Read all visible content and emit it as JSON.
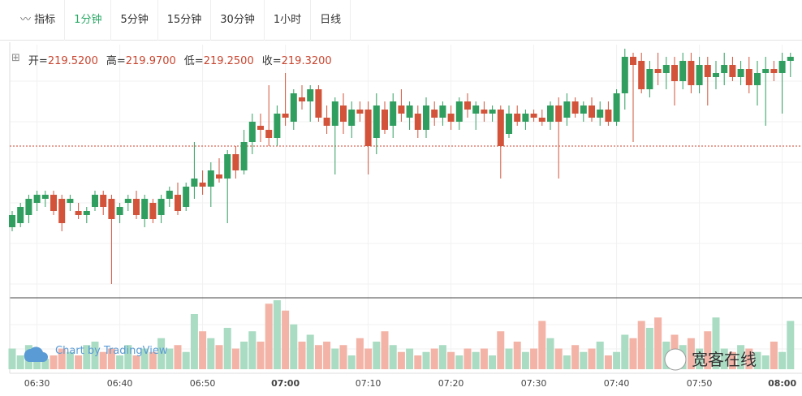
{
  "toolbar": {
    "indicator": "指标",
    "intervals": [
      "1分钟",
      "5分钟",
      "15分钟",
      "30分钟",
      "1小时",
      "日线"
    ],
    "active_interval": 0
  },
  "ohlc_header": [
    {
      "label": "开=",
      "value": "219.5200"
    },
    {
      "label": "高=",
      "value": "219.9700"
    },
    {
      "label": "低=",
      "value": "219.2500"
    },
    {
      "label": "收=",
      "value": "219.3200"
    }
  ],
  "watermarks": {
    "chart_by": "Chart by TradingView",
    "brand": "宽客在线"
  },
  "chart_data": {
    "type": "candlestick",
    "up_color": "#2f9e5f",
    "down_color": "#d2533a",
    "volume_up_color": "#a9dcc2",
    "volume_down_color": "#f3b3a6",
    "ylim": [
      218.7,
      219.94
    ],
    "volume_ylim": [
      0,
      100
    ],
    "price_line": 219.44,
    "categories": [
      null,
      null,
      null,
      "06:30",
      null,
      null,
      null,
      null,
      null,
      null,
      null,
      null,
      null,
      "06:40",
      null,
      null,
      null,
      null,
      null,
      null,
      null,
      null,
      null,
      "06:50",
      null,
      null,
      null,
      null,
      null,
      null,
      null,
      null,
      null,
      "07:00",
      null,
      null,
      null,
      null,
      null,
      null,
      null,
      null,
      null,
      "07:10",
      null,
      null,
      null,
      null,
      null,
      null,
      null,
      null,
      null,
      "07:20",
      null,
      null,
      null,
      null,
      null,
      null,
      null,
      null,
      null,
      "07:30",
      null,
      null,
      null,
      null,
      null,
      null,
      null,
      null,
      null,
      "07:40",
      null,
      null,
      null,
      null,
      null,
      null,
      null,
      null,
      null,
      "07:50",
      null,
      null,
      null,
      null,
      null,
      null,
      null,
      null,
      null,
      "08:00",
      null
    ],
    "ohlc": [
      [
        219.04,
        219.12,
        219.02,
        219.1
      ],
      [
        219.06,
        219.16,
        219.04,
        219.14
      ],
      [
        219.1,
        219.2,
        219.06,
        219.18
      ],
      [
        219.16,
        219.22,
        219.12,
        219.2
      ],
      [
        219.18,
        219.22,
        219.14,
        219.2
      ],
      [
        219.2,
        219.22,
        219.1,
        219.12
      ],
      [
        219.18,
        219.2,
        219.02,
        219.06
      ],
      [
        219.16,
        219.2,
        219.12,
        219.18
      ],
      [
        219.12,
        219.16,
        219.08,
        219.1
      ],
      [
        219.1,
        219.14,
        219.06,
        219.12
      ],
      [
        219.14,
        219.22,
        219.12,
        219.2
      ],
      [
        219.2,
        219.22,
        219.1,
        219.14
      ],
      [
        219.18,
        219.2,
        218.76,
        219.08
      ],
      [
        219.1,
        219.16,
        219.06,
        219.14
      ],
      [
        219.16,
        219.2,
        219.12,
        219.18
      ],
      [
        219.18,
        219.22,
        219.08,
        219.1
      ],
      [
        219.08,
        219.2,
        219.04,
        219.18
      ],
      [
        219.16,
        219.18,
        219.06,
        219.08
      ],
      [
        219.1,
        219.2,
        219.06,
        219.18
      ],
      [
        219.18,
        219.24,
        219.14,
        219.22
      ],
      [
        219.2,
        219.26,
        219.1,
        219.12
      ],
      [
        219.14,
        219.26,
        219.12,
        219.24
      ],
      [
        219.24,
        219.46,
        219.18,
        219.28
      ],
      [
        219.26,
        219.32,
        219.2,
        219.24
      ],
      [
        219.24,
        219.36,
        219.14,
        219.32
      ],
      [
        219.3,
        219.38,
        219.26,
        219.28
      ],
      [
        219.28,
        219.42,
        219.06,
        219.4
      ],
      [
        219.4,
        219.44,
        219.28,
        219.32
      ],
      [
        219.32,
        219.52,
        219.3,
        219.46
      ],
      [
        219.46,
        219.6,
        219.4,
        219.56
      ],
      [
        219.54,
        219.6,
        219.46,
        219.52
      ],
      [
        219.52,
        219.74,
        219.44,
        219.48
      ],
      [
        219.48,
        219.64,
        219.44,
        219.6
      ],
      [
        219.6,
        219.8,
        219.54,
        219.58
      ],
      [
        219.56,
        219.72,
        219.52,
        219.7
      ],
      [
        219.68,
        219.74,
        219.62,
        219.66
      ],
      [
        219.66,
        219.74,
        219.56,
        219.72
      ],
      [
        219.72,
        219.74,
        219.56,
        219.58
      ],
      [
        219.58,
        219.64,
        219.5,
        219.54
      ],
      [
        219.54,
        219.68,
        219.3,
        219.66
      ],
      [
        219.64,
        219.7,
        219.5,
        219.56
      ],
      [
        219.54,
        219.66,
        219.48,
        219.62
      ],
      [
        219.62,
        219.66,
        219.56,
        219.6
      ],
      [
        219.62,
        219.66,
        219.3,
        219.44
      ],
      [
        219.48,
        219.7,
        219.4,
        219.64
      ],
      [
        219.62,
        219.66,
        219.5,
        219.52
      ],
      [
        219.54,
        219.7,
        219.48,
        219.66
      ],
      [
        219.64,
        219.72,
        219.56,
        219.6
      ],
      [
        219.58,
        219.66,
        219.52,
        219.64
      ],
      [
        219.6,
        219.64,
        219.48,
        219.52
      ],
      [
        219.52,
        219.68,
        219.48,
        219.64
      ],
      [
        219.62,
        219.66,
        219.54,
        219.58
      ],
      [
        219.58,
        219.66,
        219.54,
        219.64
      ],
      [
        219.6,
        219.64,
        219.52,
        219.56
      ],
      [
        219.56,
        219.68,
        219.52,
        219.66
      ],
      [
        219.66,
        219.7,
        219.58,
        219.62
      ],
      [
        219.6,
        219.66,
        219.52,
        219.64
      ],
      [
        219.62,
        219.66,
        219.56,
        219.6
      ],
      [
        219.6,
        219.64,
        219.56,
        219.62
      ],
      [
        219.62,
        219.64,
        219.28,
        219.44
      ],
      [
        219.5,
        219.64,
        219.48,
        219.6
      ],
      [
        219.6,
        219.64,
        219.54,
        219.56
      ],
      [
        219.56,
        219.62,
        219.52,
        219.6
      ],
      [
        219.6,
        219.62,
        219.56,
        219.58
      ],
      [
        219.58,
        219.62,
        219.54,
        219.56
      ],
      [
        219.56,
        219.66,
        219.52,
        219.64
      ],
      [
        219.64,
        219.68,
        219.28,
        219.56
      ],
      [
        219.58,
        219.7,
        219.54,
        219.66
      ],
      [
        219.66,
        219.68,
        219.58,
        219.6
      ],
      [
        219.6,
        219.66,
        219.56,
        219.64
      ],
      [
        219.64,
        219.68,
        219.56,
        219.58
      ],
      [
        219.58,
        219.66,
        219.54,
        219.62
      ],
      [
        219.62,
        219.66,
        219.54,
        219.56
      ],
      [
        219.56,
        219.72,
        219.54,
        219.7
      ],
      [
        219.7,
        219.92,
        219.62,
        219.88
      ],
      [
        219.88,
        219.9,
        219.46,
        219.84
      ],
      [
        219.86,
        219.9,
        219.7,
        219.72
      ],
      [
        219.72,
        219.86,
        219.68,
        219.82
      ],
      [
        219.82,
        219.9,
        219.74,
        219.8
      ],
      [
        219.8,
        219.88,
        219.72,
        219.84
      ],
      [
        219.84,
        219.88,
        219.64,
        219.76
      ],
      [
        219.76,
        219.9,
        219.72,
        219.86
      ],
      [
        219.86,
        219.9,
        219.7,
        219.74
      ],
      [
        219.74,
        219.88,
        219.7,
        219.84
      ],
      [
        219.84,
        219.88,
        219.64,
        219.78
      ],
      [
        219.78,
        219.86,
        219.72,
        219.8
      ],
      [
        219.8,
        219.9,
        219.74,
        219.84
      ],
      [
        219.84,
        219.88,
        219.76,
        219.78
      ],
      [
        219.78,
        219.86,
        219.74,
        219.82
      ],
      [
        219.82,
        219.88,
        219.7,
        219.74
      ],
      [
        219.74,
        219.86,
        219.64,
        219.8
      ],
      [
        219.8,
        219.88,
        219.54,
        219.82
      ],
      [
        219.82,
        219.86,
        219.76,
        219.8
      ],
      [
        219.8,
        219.9,
        219.6,
        219.86
      ],
      [
        219.86,
        219.9,
        219.78,
        219.88
      ]
    ],
    "volume": [
      30,
      20,
      35,
      25,
      15,
      20,
      30,
      25,
      20,
      35,
      40,
      25,
      30,
      20,
      35,
      20,
      30,
      25,
      45,
      30,
      35,
      25,
      80,
      55,
      45,
      35,
      60,
      30,
      40,
      55,
      40,
      95,
      100,
      85,
      65,
      40,
      50,
      35,
      40,
      30,
      35,
      20,
      45,
      30,
      40,
      55,
      35,
      25,
      30,
      20,
      25,
      30,
      35,
      25,
      20,
      30,
      25,
      30,
      20,
      55,
      30,
      40,
      25,
      30,
      70,
      45,
      30,
      20,
      35,
      25,
      30,
      40,
      20,
      25,
      50,
      45,
      70,
      60,
      75,
      40,
      50,
      35,
      45,
      30,
      55,
      75,
      30,
      25,
      35,
      30,
      25,
      20,
      40,
      25,
      70
    ]
  }
}
